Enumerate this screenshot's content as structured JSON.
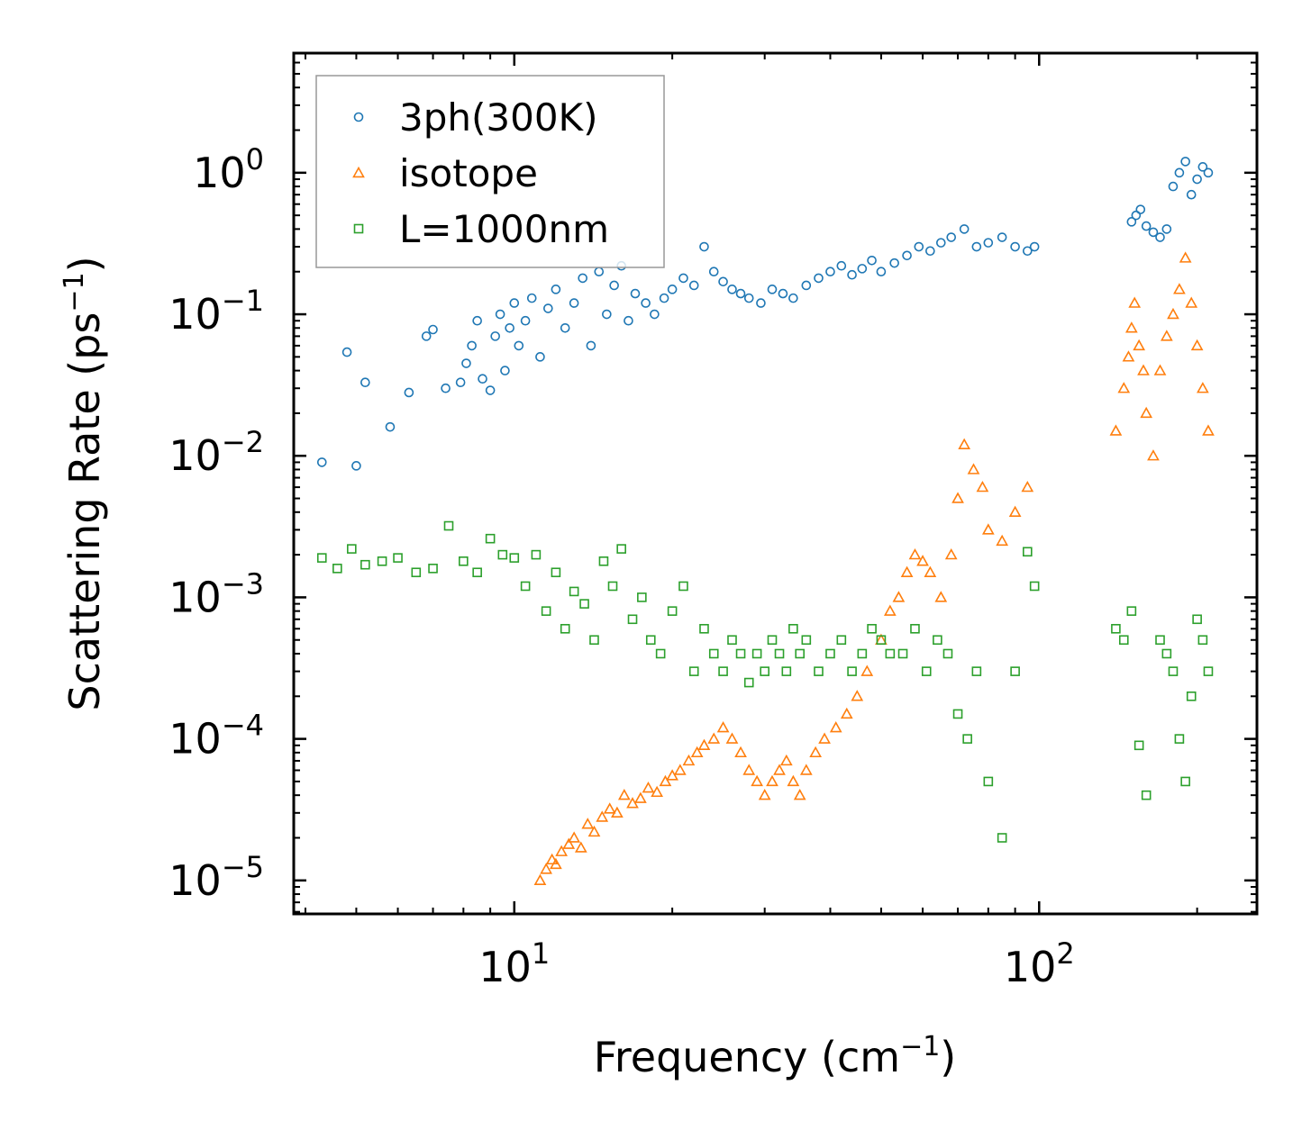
{
  "chart_data": {
    "type": "scatter",
    "title": "",
    "xlabel": "Frequency (cm⁻¹)",
    "ylabel": "Scattering Rate (ps⁻¹)",
    "xlabel_main": "Frequency (cm",
    "xlabel_sup": "−1",
    "xlabel_close": ")",
    "ylabel_main": "Scattering Rate (ps",
    "ylabel_sup": "−1",
    "ylabel_close": ")",
    "xscale": "log",
    "yscale": "log",
    "xlim": [
      3.8,
      260
    ],
    "ylim": [
      5.8e-06,
      7
    ],
    "xticks": [
      {
        "value": 10,
        "base": "10",
        "exp": "1"
      },
      {
        "value": 100,
        "base": "10",
        "exp": "2"
      }
    ],
    "yticks": [
      {
        "value": 1,
        "base": "10",
        "exp": "0"
      },
      {
        "value": 0.1,
        "base": "10",
        "exp": "−1"
      },
      {
        "value": 0.01,
        "base": "10",
        "exp": "−2"
      },
      {
        "value": 0.001,
        "base": "10",
        "exp": "−3"
      },
      {
        "value": 0.0001,
        "base": "10",
        "exp": "−4"
      },
      {
        "value": 1e-05,
        "base": "10",
        "exp": "−5"
      }
    ],
    "legend_position": "top-left",
    "series": [
      {
        "name": "3ph(300K)",
        "marker": "circle",
        "color": "#1f77b4",
        "x": [
          4.3,
          4.8,
          5.0,
          5.2,
          5.8,
          6.3,
          6.8,
          7.0,
          7.4,
          7.9,
          8.1,
          8.3,
          8.5,
          8.7,
          9.0,
          9.2,
          9.4,
          9.6,
          9.8,
          10.0,
          10.2,
          10.5,
          10.8,
          11.2,
          11.6,
          12.0,
          12.5,
          13.0,
          13.5,
          14.0,
          14.5,
          15.0,
          15.5,
          16.0,
          16.5,
          17.0,
          17.8,
          18.5,
          19.3,
          20.0,
          21.0,
          22.0,
          23.0,
          24.0,
          25.0,
          26.0,
          27.0,
          28.0,
          29.5,
          31.0,
          32.5,
          34.0,
          36.0,
          38.0,
          40.0,
          42.0,
          44.0,
          46.0,
          48.0,
          50.0,
          53.0,
          56.0,
          59.0,
          62.0,
          65.0,
          68.0,
          72.0,
          76.0,
          80.0,
          85.0,
          90.0,
          95.0,
          98.0,
          150.0,
          153.0,
          156.0,
          160.0,
          165.0,
          170.0,
          175.0,
          180.0,
          185.0,
          190.0,
          195.0,
          200.0,
          205.0,
          210.0
        ],
        "y": [
          0.009,
          0.054,
          0.0085,
          0.033,
          0.016,
          0.028,
          0.07,
          0.078,
          0.03,
          0.033,
          0.045,
          0.06,
          0.09,
          0.035,
          0.029,
          0.07,
          0.1,
          0.04,
          0.08,
          0.12,
          0.06,
          0.09,
          0.13,
          0.05,
          0.11,
          0.15,
          0.08,
          0.12,
          0.18,
          0.06,
          0.2,
          0.1,
          0.16,
          0.22,
          0.09,
          0.14,
          0.12,
          0.1,
          0.13,
          0.15,
          0.18,
          0.16,
          0.3,
          0.2,
          0.17,
          0.15,
          0.14,
          0.13,
          0.12,
          0.15,
          0.14,
          0.13,
          0.16,
          0.18,
          0.2,
          0.22,
          0.19,
          0.21,
          0.24,
          0.2,
          0.23,
          0.26,
          0.3,
          0.28,
          0.32,
          0.35,
          0.4,
          0.3,
          0.32,
          0.35,
          0.3,
          0.28,
          0.3,
          0.45,
          0.5,
          0.55,
          0.42,
          0.38,
          0.35,
          0.4,
          0.8,
          1.0,
          1.2,
          0.7,
          0.9,
          1.1,
          1.0
        ]
      },
      {
        "name": "isotope",
        "marker": "triangle",
        "color": "#ff7f0e",
        "x": [
          11.2,
          11.5,
          11.8,
          12.0,
          12.3,
          12.7,
          13.0,
          13.4,
          13.8,
          14.2,
          14.7,
          15.2,
          15.7,
          16.2,
          16.8,
          17.4,
          18.0,
          18.7,
          19.4,
          20.0,
          20.7,
          21.5,
          22.3,
          23.0,
          24.0,
          25.0,
          26.0,
          27.0,
          28.0,
          29.0,
          30.0,
          31.0,
          32.0,
          33.0,
          34.0,
          35.0,
          36.0,
          37.5,
          39.0,
          41.0,
          43.0,
          45.0,
          47.0,
          50.0,
          52.0,
          54.0,
          56.0,
          58.0,
          60.0,
          62.0,
          65.0,
          68.0,
          70.0,
          72.0,
          75.0,
          78.0,
          80.0,
          85.0,
          90.0,
          95.0,
          140.0,
          145.0,
          148.0,
          150.0,
          152.0,
          155.0,
          158.0,
          160.0,
          165.0,
          170.0,
          175.0,
          180.0,
          185.0,
          190.0,
          195.0,
          200.0,
          205.0,
          210.0
        ],
        "y": [
          1e-05,
          1.2e-05,
          1.4e-05,
          1.3e-05,
          1.6e-05,
          1.8e-05,
          2e-05,
          1.7e-05,
          2.5e-05,
          2.2e-05,
          2.8e-05,
          3.2e-05,
          3e-05,
          4e-05,
          3.5e-05,
          3.8e-05,
          4.5e-05,
          4.2e-05,
          5e-05,
          5.5e-05,
          6e-05,
          7e-05,
          8e-05,
          9e-05,
          0.0001,
          0.00012,
          0.0001,
          8e-05,
          6e-05,
          5e-05,
          4e-05,
          5e-05,
          6e-05,
          7e-05,
          5e-05,
          4e-05,
          6e-05,
          8e-05,
          0.0001,
          0.00012,
          0.00015,
          0.0002,
          0.0003,
          0.0005,
          0.0008,
          0.001,
          0.0015,
          0.002,
          0.0018,
          0.0015,
          0.001,
          0.002,
          0.005,
          0.012,
          0.008,
          0.006,
          0.003,
          0.0025,
          0.004,
          0.006,
          0.015,
          0.03,
          0.05,
          0.08,
          0.12,
          0.06,
          0.04,
          0.02,
          0.01,
          0.04,
          0.07,
          0.1,
          0.15,
          0.25,
          0.12,
          0.06,
          0.03,
          0.015
        ]
      },
      {
        "name": "L=1000nm",
        "marker": "square",
        "color": "#2ca02c",
        "x": [
          4.3,
          4.6,
          4.9,
          5.2,
          5.6,
          6.0,
          6.5,
          7.0,
          7.5,
          8.0,
          8.5,
          9.0,
          9.5,
          10.0,
          10.5,
          11.0,
          11.5,
          12.0,
          12.5,
          13.0,
          13.6,
          14.2,
          14.8,
          15.4,
          16.0,
          16.8,
          17.5,
          18.2,
          19.0,
          20.0,
          21.0,
          22.0,
          23.0,
          24.0,
          25.0,
          26.0,
          27.0,
          28.0,
          29.0,
          30.0,
          31.0,
          32.0,
          33.0,
          34.0,
          35.0,
          36.0,
          38.0,
          40.0,
          42.0,
          44.0,
          46.0,
          48.0,
          50.0,
          52.0,
          55.0,
          58.0,
          61.0,
          64.0,
          67.0,
          70.0,
          73.0,
          76.0,
          80.0,
          85.0,
          90.0,
          95.0,
          98.0,
          140.0,
          145.0,
          150.0,
          155.0,
          160.0,
          170.0,
          175.0,
          180.0,
          185.0,
          190.0,
          195.0,
          200.0,
          205.0,
          210.0
        ],
        "y": [
          0.0019,
          0.0016,
          0.0022,
          0.0017,
          0.0018,
          0.0019,
          0.0015,
          0.0016,
          0.0032,
          0.0018,
          0.0015,
          0.0026,
          0.002,
          0.0019,
          0.0012,
          0.002,
          0.0008,
          0.0015,
          0.0006,
          0.0011,
          0.0009,
          0.0005,
          0.0018,
          0.0012,
          0.0022,
          0.0007,
          0.001,
          0.0005,
          0.0004,
          0.0008,
          0.0012,
          0.0003,
          0.0006,
          0.0004,
          0.0003,
          0.0005,
          0.0004,
          0.00025,
          0.0004,
          0.0003,
          0.0005,
          0.0004,
          0.0003,
          0.0006,
          0.0004,
          0.0005,
          0.0003,
          0.0004,
          0.0005,
          0.0003,
          0.0004,
          0.0006,
          0.0005,
          0.0004,
          0.0004,
          0.0006,
          0.0003,
          0.0005,
          0.0004,
          0.00015,
          0.0001,
          0.0003,
          5e-05,
          2e-05,
          0.0003,
          0.0021,
          0.0012,
          0.0006,
          0.0005,
          0.0008,
          9e-05,
          4e-05,
          0.0005,
          0.0004,
          0.0003,
          0.0001,
          5e-05,
          0.0002,
          0.0007,
          0.0005,
          0.0003
        ]
      }
    ]
  }
}
